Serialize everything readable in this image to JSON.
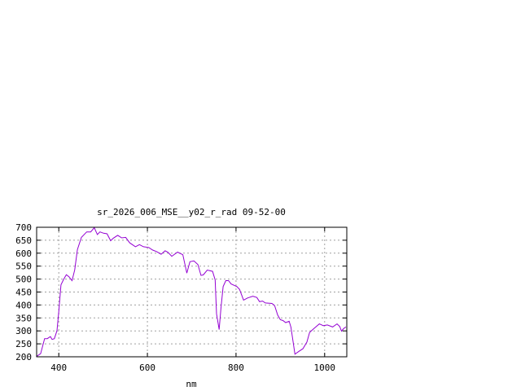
{
  "chart_data": {
    "type": "line",
    "title": "sr_2026_006_MSE__y02_r_rad 09-52-00",
    "xlabel": "nm",
    "ylabel": "",
    "xlim": [
      350,
      1050
    ],
    "ylim": [
      200,
      700
    ],
    "xticks": [
      400,
      600,
      800,
      1000
    ],
    "yticks": [
      200,
      250,
      300,
      350,
      400,
      450,
      500,
      550,
      600,
      650,
      700
    ],
    "grid": true,
    "line_color": "#9400d3",
    "series": [
      {
        "x": [
          350,
          359,
          368,
          374,
          381,
          385,
          390,
          396,
          400,
          405,
          411,
          417,
          423,
          430,
          436,
          442,
          451,
          463,
          472,
          480,
          487,
          493,
          501,
          509,
          517,
          523,
          533,
          542,
          551,
          560,
          573,
          582,
          591,
          603,
          612,
          621,
          631,
          640,
          646,
          655,
          668,
          680,
          689,
          696,
          705,
          714,
          721,
          726,
          735,
          747,
          753,
          756,
          762,
          766,
          771,
          777,
          783,
          789,
          802,
          808,
          817,
          826,
          838,
          847,
          853,
          860,
          866,
          881,
          887,
          894,
          900,
          906,
          912,
          920,
          924,
          933,
          942,
          951,
          960,
          966,
          976,
          988,
          997,
          1006,
          1018,
          1028,
          1034,
          1038,
          1043,
          1048
        ],
        "y": [
          202,
          212,
          270,
          270,
          278,
          267,
          270,
          301,
          374,
          478,
          499,
          517,
          509,
          494,
          536,
          614,
          661,
          682,
          682,
          698,
          672,
          682,
          677,
          675,
          648,
          658,
          669,
          659,
          661,
          640,
          625,
          633,
          625,
          622,
          612,
          606,
          596,
          609,
          604,
          588,
          604,
          594,
          523,
          567,
          570,
          556,
          514,
          516,
          535,
          530,
          497,
          366,
          305,
          387,
          471,
          494,
          494,
          481,
          471,
          460,
          419,
          427,
          434,
          429,
          413,
          415,
          408,
          406,
          398,
          361,
          343,
          340,
          332,
          337,
          314,
          210,
          221,
          231,
          257,
          294,
          309,
          327,
          320,
          323,
          315,
          327,
          317,
          299,
          309,
          315
        ]
      }
    ]
  }
}
